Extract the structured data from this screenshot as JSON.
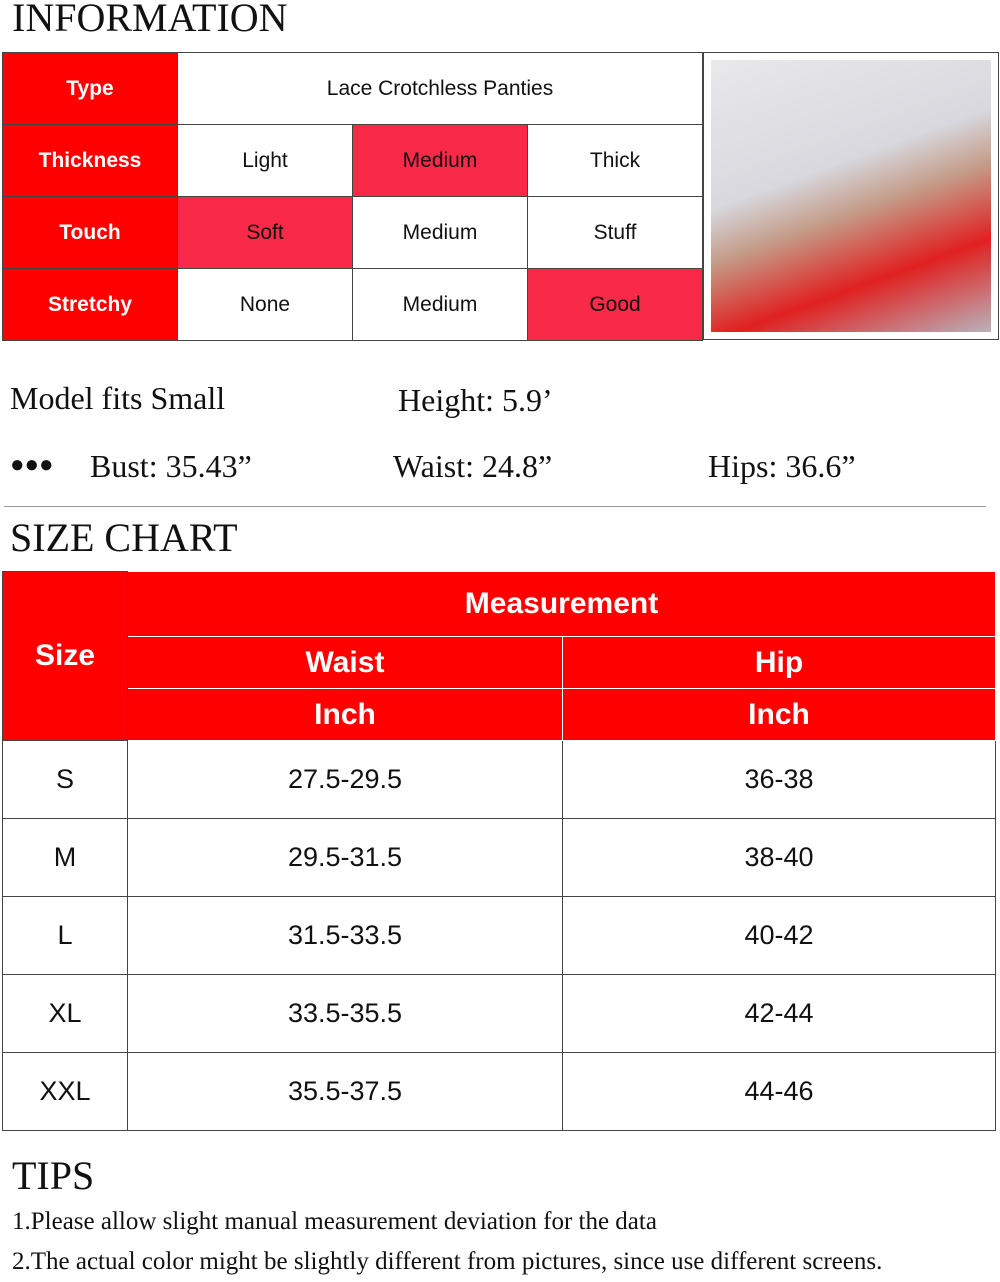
{
  "information": {
    "title": "INFORMATION",
    "rows": [
      {
        "label": "Type",
        "value": "Lace Crotchless Panties"
      },
      {
        "label": "Thickness",
        "options": [
          "Light",
          "Medium",
          "Thick"
        ],
        "selected": 1
      },
      {
        "label": "Touch",
        "options": [
          "Soft",
          "Medium",
          "Stuff"
        ],
        "selected": 0
      },
      {
        "label": "Stretchy",
        "options": [
          "None",
          "Medium",
          "Good"
        ],
        "selected": 2
      }
    ],
    "highlight_color": "#f92a48",
    "label_color": "#ff0000"
  },
  "model": {
    "fits": "Model fits Small",
    "height": "Height: 5.9’",
    "bullet": "●●●",
    "bust": "Bust: 35.43”",
    "waist": "Waist: 24.8”",
    "hips": "Hips: 36.6”"
  },
  "size_chart": {
    "title": "SIZE CHART",
    "size_header": "Size",
    "measurement": "Measurement",
    "waist": "Waist",
    "hip": "Hip",
    "unit": "Inch",
    "rows": [
      {
        "size": "S",
        "waist": "27.5-29.5",
        "hip": "36-38"
      },
      {
        "size": "M",
        "waist": "29.5-31.5",
        "hip": "38-40"
      },
      {
        "size": "L",
        "waist": "31.5-33.5",
        "hip": "40-42"
      },
      {
        "size": "XL",
        "waist": "33.5-35.5",
        "hip": "42-44"
      },
      {
        "size": "XXL",
        "waist": "35.5-37.5",
        "hip": "44-46"
      }
    ]
  },
  "tips": {
    "title": "TIPS",
    "items": [
      "1.Please allow slight manual measurement deviation for the data",
      "2.The actual color might be slightly different from pictures, since use different screens."
    ]
  }
}
